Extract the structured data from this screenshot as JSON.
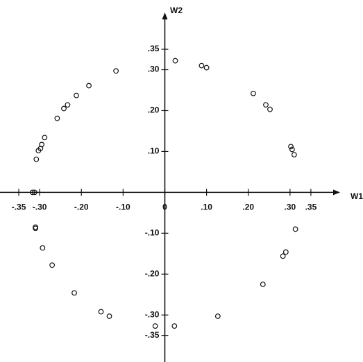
{
  "chart_data": {
    "type": "scatter",
    "x_label": "W1",
    "y_label": "W2",
    "x": [
      0.025,
      0.088,
      0.1,
      -0.117,
      -0.182,
      -0.212,
      -0.233,
      -0.242,
      -0.258,
      0.212,
      0.242,
      0.252,
      -0.288,
      -0.295,
      -0.298,
      -0.303,
      -0.308,
      0.302,
      0.305,
      0.31,
      -0.312,
      -0.317,
      -0.31,
      -0.31,
      -0.293,
      -0.27,
      -0.217,
      -0.153,
      -0.133,
      -0.023,
      0.023,
      0.127,
      0.235,
      0.283,
      0.29,
      0.313
    ],
    "values": [
      0.322,
      0.31,
      0.305,
      0.297,
      0.261,
      0.237,
      0.214,
      0.205,
      0.181,
      0.242,
      0.214,
      0.203,
      0.134,
      0.117,
      0.107,
      0.102,
      0.081,
      0.112,
      0.105,
      0.092,
      0.0,
      0.0,
      -0.085,
      -0.088,
      -0.136,
      -0.178,
      -0.246,
      -0.292,
      -0.303,
      -0.327,
      -0.327,
      -0.303,
      -0.225,
      -0.156,
      -0.146,
      -0.09
    ],
    "xlim": [
      -0.395,
      0.42
    ],
    "ylim": [
      -0.415,
      0.44
    ],
    "xticks": [
      {
        "value": -0.35,
        "label": "-.35"
      },
      {
        "value": -0.3,
        "label": "-.30"
      },
      {
        "value": -0.2,
        "label": "-.20"
      },
      {
        "value": -0.1,
        "label": "-.10"
      },
      0,
      {
        "value": 0.1,
        "label": ".10"
      },
      {
        "value": 0.2,
        "label": ".20"
      },
      {
        "value": 0.3,
        "label": ".30"
      },
      {
        "value": 0.35,
        "label": ".35"
      }
    ],
    "yticks": [
      {
        "value": 0.35,
        "label": ".35"
      },
      {
        "value": 0.3,
        "label": ".30"
      },
      {
        "value": 0.2,
        "label": ".20"
      },
      {
        "value": 0.1,
        "label": ".10"
      },
      {
        "value": -0.1,
        "label": "-.10"
      },
      {
        "value": -0.2,
        "label": "-.20"
      },
      {
        "value": -0.3,
        "label": "-.30"
      },
      {
        "value": -0.35,
        "label": "-.35"
      }
    ],
    "color": "#111111"
  }
}
